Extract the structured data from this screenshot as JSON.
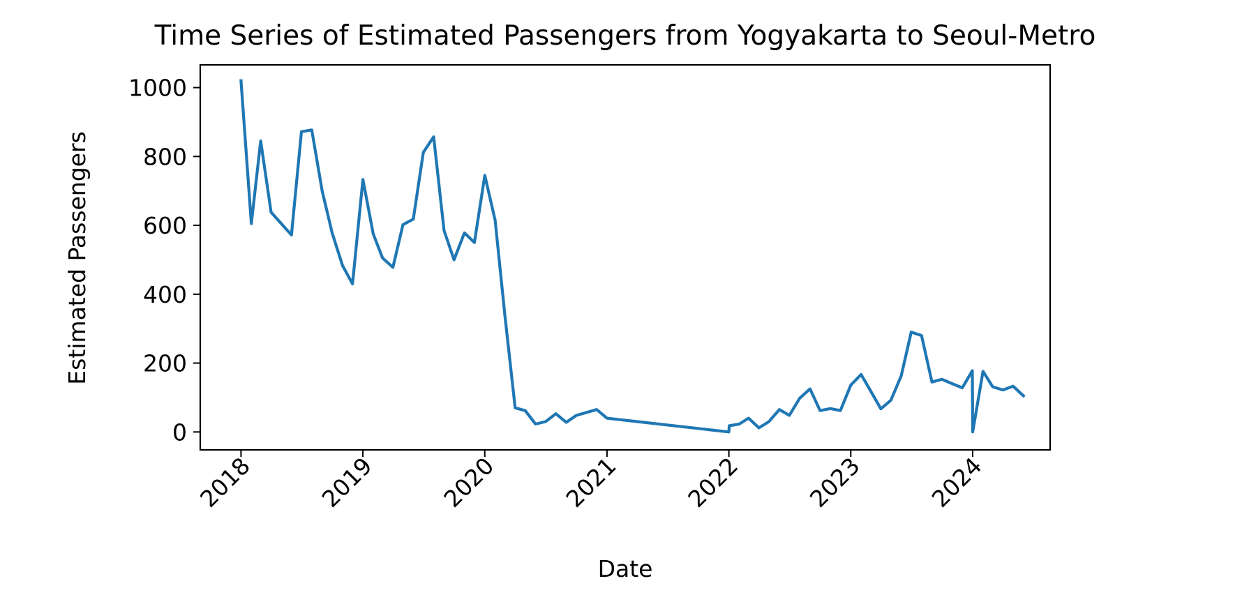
{
  "chart_data": {
    "type": "line",
    "title": "Time Series of Estimated Passengers from Yogyakarta to Seoul-Metro",
    "xlabel": "Date",
    "ylabel": "Estimated Passengers",
    "x_axis_kind": "date",
    "xlim": [
      "2017-09-01",
      "2024-08-20"
    ],
    "ylim": [
      -52,
      1066
    ],
    "x_ticks": [
      "2018",
      "2019",
      "2020",
      "2021",
      "2022",
      "2023",
      "2024"
    ],
    "y_ticks": [
      0,
      200,
      400,
      600,
      800,
      1000
    ],
    "grid": false,
    "legend": "none",
    "colors": {
      "line": "#1f77b4",
      "axes": "#000000",
      "background": "#ffffff"
    },
    "series": [
      {
        "x": [
          "2018-01-01",
          "2018-02-01",
          "2018-03-01",
          "2018-04-01",
          "2018-06-01",
          "2018-07-01",
          "2018-08-01",
          "2018-09-01",
          "2018-10-01",
          "2018-11-01",
          "2018-12-01",
          "2019-01-01",
          "2019-02-01",
          "2019-03-01",
          "2019-04-01",
          "2019-05-01",
          "2019-06-01",
          "2019-07-01",
          "2019-08-01",
          "2019-09-01",
          "2019-10-01",
          "2019-11-01",
          "2019-12-01",
          "2020-01-01",
          "2020-02-01",
          "2020-03-01",
          "2020-04-01",
          "2020-05-01",
          "2020-06-01",
          "2020-07-01",
          "2020-08-01",
          "2020-09-01",
          "2020-10-01",
          "2020-12-01",
          "2021-01-01",
          "2022-01-01",
          "2022-01-02",
          "2022-02-01",
          "2022-03-01",
          "2022-04-01",
          "2022-05-01",
          "2022-06-01",
          "2022-07-01",
          "2022-08-01",
          "2022-09-01",
          "2022-10-01",
          "2022-11-01",
          "2022-12-01",
          "2023-01-01",
          "2023-02-01",
          "2023-03-01",
          "2023-04-01",
          "2023-05-01",
          "2023-06-01",
          "2023-07-01",
          "2023-08-01",
          "2023-09-01",
          "2023-10-01",
          "2023-11-01",
          "2023-12-01",
          "2023-12-31",
          "2024-01-01",
          "2024-02-01",
          "2024-03-01",
          "2024-04-01",
          "2024-05-01",
          "2024-06-01"
        ],
        "y": [
          1020,
          605,
          845,
          638,
          572,
          872,
          877,
          700,
          578,
          483,
          430,
          733,
          575,
          505,
          478,
          602,
          618,
          812,
          857,
          585,
          500,
          578,
          550,
          745,
          615,
          340,
          70,
          62,
          23,
          30,
          53,
          28,
          48,
          65,
          40,
          0,
          18,
          23,
          40,
          12,
          30,
          65,
          48,
          98,
          125,
          62,
          68,
          62,
          136,
          167,
          120,
          67,
          92,
          163,
          290,
          280,
          145,
          153,
          140,
          128,
          178,
          0,
          176,
          131,
          122,
          133,
          105
        ]
      }
    ]
  }
}
